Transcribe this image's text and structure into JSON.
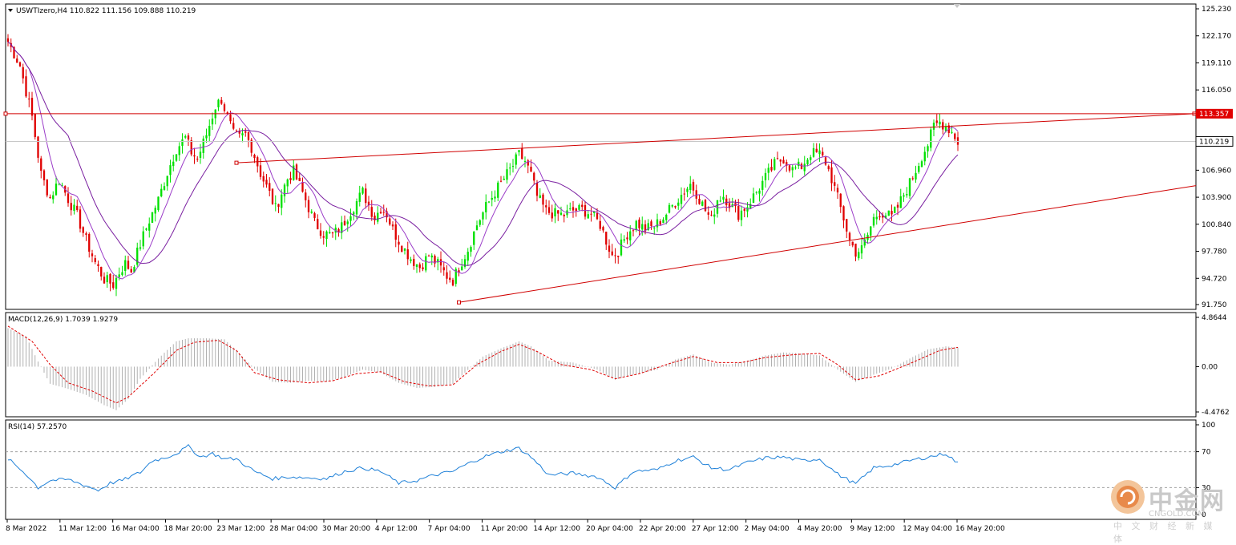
{
  "chart_data": [
    {
      "type": "candlestick",
      "panel": "price",
      "title": "USWTIzero,H4",
      "ohlc_header": "110.822 111.156 109.888 110.219",
      "ylim": [
        91.75,
        125.23
      ],
      "yticks": [
        "125.230",
        "122.170",
        "119.110",
        "116.050",
        "106.960",
        "103.900",
        "100.840",
        "97.780",
        "94.720",
        "91.750"
      ],
      "last_price": "110.219",
      "resistance_level": "113.357",
      "xticks": [
        "8 Mar 2022",
        "11 Mar 12:00",
        "16 Mar 04:00",
        "18 Mar 20:00",
        "23 Mar 12:00",
        "28 Mar 04:00",
        "30 Mar 20:00",
        "4 Apr 12:00",
        "7 Apr 04:00",
        "11 Apr 20:00",
        "14 Apr 12:00",
        "20 Apr 04:00",
        "22 Apr 20:00",
        "27 Apr 12:00",
        "2 May 04:00",
        "4 May 20:00",
        "9 May 12:00",
        "12 May 04:00",
        "16 May 20:00"
      ],
      "close_path": [
        [
          0,
          121.5
        ],
        [
          4,
          118.8
        ],
        [
          8,
          113.0
        ],
        [
          11,
          106.5
        ],
        [
          14,
          103.8
        ],
        [
          17,
          105.9
        ],
        [
          20,
          103.7
        ],
        [
          23,
          101.8
        ],
        [
          26,
          99.0
        ],
        [
          29,
          96.5
        ],
        [
          32,
          94.6
        ],
        [
          35,
          94.0
        ],
        [
          37,
          95.4
        ],
        [
          39,
          96.4
        ],
        [
          41,
          95.6
        ],
        [
          44,
          98.6
        ],
        [
          47,
          101.3
        ],
        [
          50,
          103.6
        ],
        [
          53,
          106.7
        ],
        [
          56,
          109.4
        ],
        [
          59,
          110.6
        ],
        [
          61,
          109.0
        ],
        [
          63,
          108.2
        ],
        [
          66,
          111.0
        ],
        [
          69,
          114.2
        ],
        [
          71,
          115.0
        ],
        [
          73,
          113.0
        ],
        [
          75,
          111.0
        ],
        [
          77,
          110.6
        ],
        [
          79,
          111.0
        ],
        [
          81,
          109.6
        ],
        [
          84,
          106.6
        ],
        [
          87,
          104.3
        ],
        [
          89,
          102.6
        ],
        [
          91,
          104.4
        ],
        [
          93,
          106.0
        ],
        [
          95,
          106.8
        ],
        [
          97,
          105.2
        ],
        [
          99,
          103.6
        ],
        [
          102,
          101.0
        ],
        [
          105,
          99.8
        ],
        [
          108,
          99.6
        ],
        [
          111,
          100.6
        ],
        [
          113,
          101.8
        ],
        [
          116,
          103.4
        ],
        [
          118,
          104.5
        ],
        [
          120,
          103.0
        ],
        [
          122,
          101.6
        ],
        [
          124,
          102.7
        ],
        [
          126,
          102.0
        ],
        [
          128,
          100.2
        ],
        [
          131,
          98.4
        ],
        [
          134,
          97.0
        ],
        [
          137,
          96.0
        ],
        [
          140,
          97.3
        ],
        [
          143,
          96.3
        ],
        [
          146,
          95.0
        ],
        [
          148,
          94.5
        ],
        [
          150,
          96.0
        ],
        [
          153,
          98.0
        ],
        [
          156,
          100.8
        ],
        [
          159,
          102.8
        ],
        [
          162,
          104.5
        ],
        [
          165,
          106.0
        ],
        [
          168,
          107.5
        ],
        [
          170,
          108.7
        ],
        [
          172,
          108.0
        ],
        [
          174,
          106.4
        ],
        [
          176,
          104.0
        ],
        [
          179,
          102.3
        ],
        [
          182,
          102.0
        ],
        [
          185,
          101.9
        ],
        [
          188,
          102.4
        ],
        [
          191,
          102.5
        ],
        [
          194,
          102.0
        ],
        [
          197,
          100.8
        ],
        [
          199,
          99.0
        ],
        [
          201,
          97.3
        ],
        [
          203,
          97.8
        ],
        [
          206,
          99.8
        ],
        [
          209,
          101.0
        ],
        [
          212,
          100.3
        ],
        [
          215,
          100.6
        ],
        [
          218,
          101.6
        ],
        [
          221,
          102.9
        ],
        [
          224,
          104.2
        ],
        [
          227,
          105.4
        ],
        [
          229,
          104.4
        ],
        [
          232,
          102.4
        ],
        [
          234,
          101.3
        ],
        [
          236,
          103.7
        ],
        [
          238,
          104.1
        ],
        [
          240,
          103.2
        ],
        [
          243,
          102.0
        ],
        [
          246,
          103.0
        ],
        [
          249,
          104.5
        ],
        [
          252,
          106.1
        ],
        [
          255,
          107.6
        ],
        [
          258,
          108.3
        ],
        [
          261,
          107.0
        ],
        [
          264,
          107.4
        ],
        [
          267,
          108.9
        ],
        [
          270,
          108.8
        ],
        [
          272,
          107.9
        ],
        [
          274,
          106.0
        ],
        [
          276,
          103.8
        ],
        [
          278,
          101.5
        ],
        [
          280,
          99.0
        ],
        [
          282,
          97.7
        ],
        [
          284,
          98.0
        ],
        [
          286,
          99.6
        ],
        [
          288,
          101.5
        ],
        [
          290,
          102.2
        ],
        [
          292,
          102.0
        ],
        [
          294,
          101.6
        ],
        [
          296,
          102.8
        ],
        [
          298,
          104.2
        ],
        [
          300,
          105.5
        ],
        [
          302,
          107.0
        ],
        [
          304,
          108.6
        ],
        [
          306,
          109.9
        ],
        [
          308,
          111.9
        ],
        [
          310,
          112.4
        ],
        [
          312,
          112.0
        ],
        [
          314,
          111.3
        ],
        [
          316,
          110.2
        ]
      ],
      "candles": 317,
      "moving_averages": [
        "short MA",
        "long MA"
      ],
      "trendlines": [
        {
          "kind": "horizontal",
          "value": 113.357
        },
        {
          "kind": "upper-channel",
          "from": [
            76,
            107.8
          ],
          "to": [
            317,
            112.0
          ]
        },
        {
          "kind": "lower-channel",
          "from": [
            150,
            92.0
          ],
          "to": [
            317,
            101.0
          ]
        }
      ]
    },
    {
      "type": "histogram+line",
      "panel": "macd",
      "title": "MACD(12,26,9) 1.7039 1.9279",
      "ylim": [
        -4.4762,
        4.8644
      ],
      "yticks": [
        "4.8644",
        "0.00",
        "-4.4762"
      ],
      "macd_path": [
        [
          0,
          3.8
        ],
        [
          6,
          3.0
        ],
        [
          10,
          0.5
        ],
        [
          14,
          -1.7
        ],
        [
          20,
          -2.2
        ],
        [
          26,
          -2.8
        ],
        [
          32,
          -3.8
        ],
        [
          36,
          -4.3
        ],
        [
          40,
          -3.2
        ],
        [
          44,
          -1.2
        ],
        [
          50,
          0.8
        ],
        [
          56,
          2.5
        ],
        [
          60,
          2.8
        ],
        [
          66,
          2.8
        ],
        [
          72,
          2.7
        ],
        [
          76,
          1.6
        ],
        [
          82,
          -0.2
        ],
        [
          88,
          -1.5
        ],
        [
          94,
          -1.6
        ],
        [
          100,
          -1.4
        ],
        [
          106,
          -1.5
        ],
        [
          112,
          -1.0
        ],
        [
          118,
          -0.3
        ],
        [
          124,
          -0.6
        ],
        [
          130,
          -1.6
        ],
        [
          136,
          -2.1
        ],
        [
          142,
          -2.0
        ],
        [
          148,
          -1.7
        ],
        [
          152,
          -0.6
        ],
        [
          158,
          1.0
        ],
        [
          164,
          1.8
        ],
        [
          170,
          2.5
        ],
        [
          174,
          2.0
        ],
        [
          180,
          0.6
        ],
        [
          188,
          0.4
        ],
        [
          196,
          -0.3
        ],
        [
          202,
          -1.3
        ],
        [
          208,
          -0.8
        ],
        [
          216,
          -0.3
        ],
        [
          222,
          0.7
        ],
        [
          228,
          1.2
        ],
        [
          234,
          0.4
        ],
        [
          240,
          0.2
        ],
        [
          246,
          0.6
        ],
        [
          252,
          1.1
        ],
        [
          258,
          1.4
        ],
        [
          264,
          1.3
        ],
        [
          270,
          1.1
        ],
        [
          276,
          -0.3
        ],
        [
          282,
          -1.5
        ],
        [
          288,
          -0.8
        ],
        [
          294,
          -0.2
        ],
        [
          300,
          0.8
        ],
        [
          306,
          1.7
        ],
        [
          312,
          2.0
        ],
        [
          316,
          1.9
        ]
      ],
      "signal_path": [
        [
          0,
          4.0
        ],
        [
          8,
          2.5
        ],
        [
          14,
          0.2
        ],
        [
          20,
          -1.6
        ],
        [
          28,
          -2.4
        ],
        [
          36,
          -3.6
        ],
        [
          40,
          -3.0
        ],
        [
          48,
          -0.8
        ],
        [
          56,
          1.6
        ],
        [
          62,
          2.4
        ],
        [
          70,
          2.6
        ],
        [
          76,
          1.6
        ],
        [
          82,
          -0.6
        ],
        [
          90,
          -1.3
        ],
        [
          100,
          -1.6
        ],
        [
          108,
          -1.4
        ],
        [
          116,
          -0.7
        ],
        [
          124,
          -0.5
        ],
        [
          132,
          -1.5
        ],
        [
          140,
          -1.9
        ],
        [
          148,
          -1.8
        ],
        [
          156,
          0.2
        ],
        [
          164,
          1.5
        ],
        [
          170,
          2.2
        ],
        [
          176,
          1.5
        ],
        [
          184,
          0.2
        ],
        [
          194,
          -0.3
        ],
        [
          202,
          -1.2
        ],
        [
          210,
          -0.7
        ],
        [
          220,
          0.3
        ],
        [
          228,
          1.0
        ],
        [
          236,
          0.4
        ],
        [
          244,
          0.4
        ],
        [
          252,
          0.9
        ],
        [
          262,
          1.2
        ],
        [
          270,
          1.3
        ],
        [
          276,
          0.2
        ],
        [
          282,
          -1.3
        ],
        [
          290,
          -0.9
        ],
        [
          300,
          0.3
        ],
        [
          310,
          1.6
        ],
        [
          316,
          1.9
        ]
      ]
    },
    {
      "type": "line",
      "panel": "rsi",
      "title": "RSI(14) 57.2570",
      "ylim": [
        0,
        100
      ],
      "yticks": [
        "100",
        "70",
        "30",
        "0"
      ],
      "levels": [
        70,
        30
      ],
      "rsi_path": [
        [
          0,
          62
        ],
        [
          6,
          45
        ],
        [
          10,
          30
        ],
        [
          14,
          38
        ],
        [
          20,
          39
        ],
        [
          26,
          32
        ],
        [
          30,
          27
        ],
        [
          34,
          35
        ],
        [
          38,
          38
        ],
        [
          44,
          47
        ],
        [
          48,
          60
        ],
        [
          52,
          63
        ],
        [
          56,
          68
        ],
        [
          60,
          76
        ],
        [
          64,
          64
        ],
        [
          68,
          68
        ],
        [
          72,
          62
        ],
        [
          76,
          62
        ],
        [
          82,
          48
        ],
        [
          88,
          40
        ],
        [
          94,
          42
        ],
        [
          100,
          41
        ],
        [
          106,
          40
        ],
        [
          112,
          48
        ],
        [
          118,
          52
        ],
        [
          124,
          48
        ],
        [
          130,
          35
        ],
        [
          136,
          38
        ],
        [
          142,
          44
        ],
        [
          148,
          48
        ],
        [
          152,
          55
        ],
        [
          158,
          64
        ],
        [
          164,
          70
        ],
        [
          170,
          74
        ],
        [
          174,
          64
        ],
        [
          180,
          44
        ],
        [
          188,
          46
        ],
        [
          196,
          42
        ],
        [
          202,
          30
        ],
        [
          208,
          48
        ],
        [
          216,
          50
        ],
        [
          222,
          60
        ],
        [
          228,
          64
        ],
        [
          234,
          52
        ],
        [
          240,
          50
        ],
        [
          246,
          58
        ],
        [
          252,
          63
        ],
        [
          258,
          64
        ],
        [
          264,
          60
        ],
        [
          270,
          62
        ],
        [
          276,
          45
        ],
        [
          282,
          34
        ],
        [
          288,
          52
        ],
        [
          294,
          55
        ],
        [
          300,
          60
        ],
        [
          306,
          64
        ],
        [
          312,
          68
        ],
        [
          316,
          57
        ]
      ]
    }
  ],
  "watermark": {
    "brand": "中金网",
    "domain": "CNGOLD.COM",
    "tagline": "中 文 财 经 新 媒 体"
  },
  "colors": {
    "bull": "#00e000",
    "bear": "#e00000",
    "trendline": "#d00000",
    "ma_short": "#9b3cc8",
    "ma_long": "#7a1fa0",
    "macd_hist": "#b0b0b0",
    "signal": "#e00000",
    "rsi": "#1e80d8"
  }
}
